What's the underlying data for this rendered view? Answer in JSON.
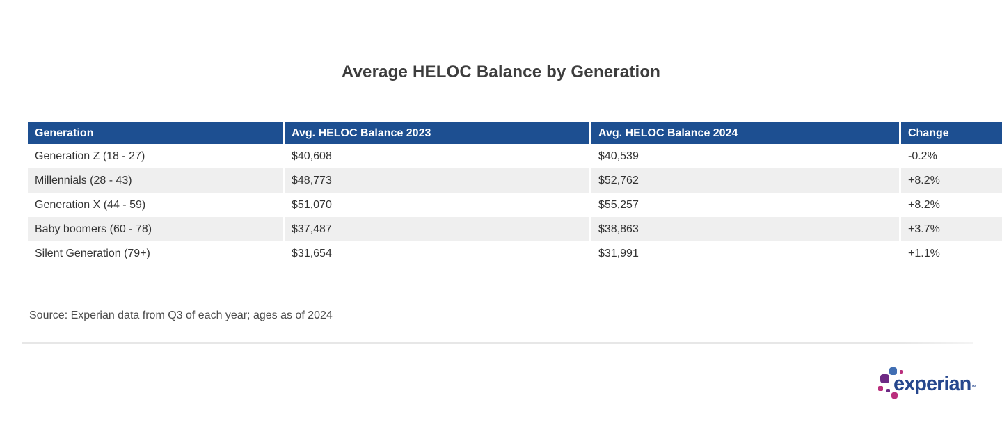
{
  "page": {
    "title": "Average HELOC Balance by Generation"
  },
  "table": {
    "columns": [
      "Generation",
      "Avg. HELOC Balance 2023",
      "Avg. HELOC Balance 2024",
      "Change"
    ],
    "rows": [
      [
        "Generation Z (18 - 27)",
        "$40,608",
        "$40,539",
        "-0.2%"
      ],
      [
        "Millennials (28 - 43)",
        "$48,773",
        "$52,762",
        "+8.2%"
      ],
      [
        "Generation X (44 - 59)",
        "$51,070",
        "$55,257",
        "+8.2%"
      ],
      [
        "Baby boomers (60 - 78)",
        "$37,487",
        "$38,863",
        "+3.7%"
      ],
      [
        "Silent Generation (79+)",
        "$31,654",
        "$31,991",
        "+1.1%"
      ]
    ]
  },
  "source": {
    "text": "Source: Experian data from Q3 of each year; ages as of 2024"
  },
  "logo": {
    "wordmark": "experian",
    "trademark": "™"
  },
  "colors": {
    "header_bg": "#1d4f91",
    "row_alt_bg": "#efefef",
    "body_text": "#333333",
    "title_text": "#3d3d3d",
    "logo_wordmark_blue": "#26478d",
    "logo_blue": "#406eb3",
    "logo_purple": "#6d2a85",
    "logo_magenta": "#ba2f7d"
  },
  "chart_data": {
    "type": "table",
    "title": "Average HELOC Balance by Generation",
    "columns": [
      "Generation",
      "Avg. HELOC Balance 2023",
      "Avg. HELOC Balance 2024",
      "Change"
    ],
    "rows": [
      {
        "generation": "Generation Z (18 - 27)",
        "avg_heloc_balance_2023": 40608,
        "avg_heloc_balance_2024": 40539,
        "change_pct": -0.2
      },
      {
        "generation": "Millennials (28 - 43)",
        "avg_heloc_balance_2023": 48773,
        "avg_heloc_balance_2024": 52762,
        "change_pct": 8.2
      },
      {
        "generation": "Generation X (44 - 59)",
        "avg_heloc_balance_2023": 51070,
        "avg_heloc_balance_2024": 55257,
        "change_pct": 8.2
      },
      {
        "generation": "Baby boomers (60 - 78)",
        "avg_heloc_balance_2023": 37487,
        "avg_heloc_balance_2024": 38863,
        "change_pct": 3.7
      },
      {
        "generation": "Silent Generation (79+)",
        "avg_heloc_balance_2023": 31654,
        "avg_heloc_balance_2024": 31991,
        "change_pct": 1.1
      }
    ],
    "source": "Source: Experian data from Q3 of each year; ages as of 2024",
    "layout_hints": {
      "header_style": "solid dark blue with white bold text",
      "zebra_striping": true,
      "grid": "off"
    }
  }
}
